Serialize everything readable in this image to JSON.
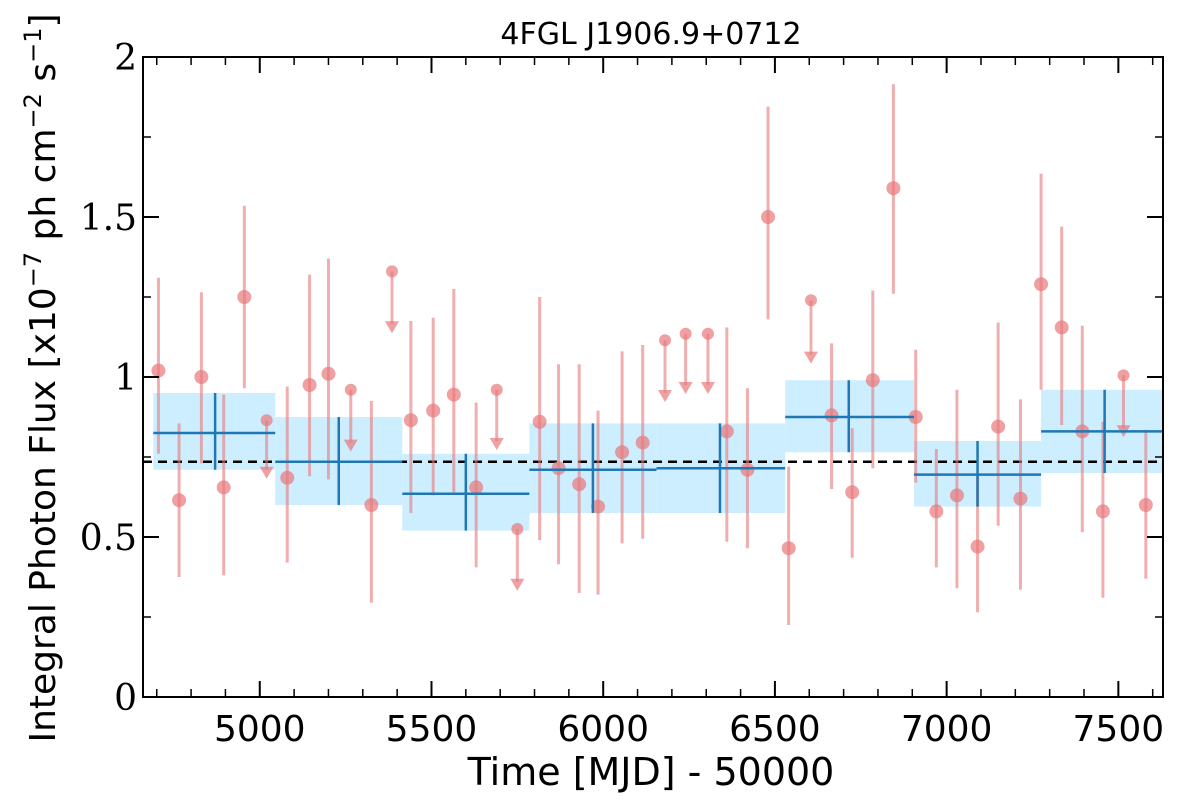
{
  "chart_data": {
    "type": "scatter",
    "title": "4FGL J1906.9+0712",
    "xlabel": "Time [MJD] - 50000",
    "ylabel": {
      "main": "Integral Photon Flux [x10",
      "exp1": "−7",
      "mid": " ph cm",
      "exp2": "−2",
      "mid2": " s",
      "exp3": "−1",
      "end": "]"
    },
    "xlim": [
      4660,
      7630
    ],
    "ylim": [
      0,
      2
    ],
    "xticks": [
      {
        "value": 5000,
        "label": "5000"
      },
      {
        "value": 5500,
        "label": "5500"
      },
      {
        "value": 6000,
        "label": "6000"
      },
      {
        "value": 6500,
        "label": "6500"
      },
      {
        "value": 7000,
        "label": "7000"
      },
      {
        "value": 7500,
        "label": "7500"
      }
    ],
    "yticks": [
      {
        "value": 0,
        "label": "0"
      },
      {
        "value": 0.5,
        "label": "0.5"
      },
      {
        "value": 1,
        "label": "1"
      },
      {
        "value": 1.5,
        "label": "1.5"
      },
      {
        "value": 2,
        "label": "2"
      }
    ],
    "mean_flux": 0.735,
    "colors": {
      "points": "#e8787a",
      "bins": "#1f77b4",
      "band": "#cdeeff",
      "mean_line": "#000000"
    },
    "detections": [
      {
        "x": 4705,
        "y": 1.02,
        "lo": 0.76,
        "hi": 1.31
      },
      {
        "x": 4765,
        "y": 0.615,
        "lo": 0.375,
        "hi": 0.855
      },
      {
        "x": 4830,
        "y": 1.0,
        "lo": 0.73,
        "hi": 1.265
      },
      {
        "x": 4895,
        "y": 0.655,
        "lo": 0.38,
        "hi": 0.945
      },
      {
        "x": 4955,
        "y": 1.25,
        "lo": 0.965,
        "hi": 1.535
      },
      {
        "x": 5080,
        "y": 0.685,
        "lo": 0.42,
        "hi": 0.97
      },
      {
        "x": 5145,
        "y": 0.975,
        "lo": 0.69,
        "hi": 1.32
      },
      {
        "x": 5200,
        "y": 1.01,
        "lo": 0.68,
        "hi": 1.37
      },
      {
        "x": 5325,
        "y": 0.6,
        "lo": 0.295,
        "hi": 0.925
      },
      {
        "x": 5440,
        "y": 0.865,
        "lo": 0.575,
        "hi": 1.175
      },
      {
        "x": 5505,
        "y": 0.895,
        "lo": 0.63,
        "hi": 1.185
      },
      {
        "x": 5565,
        "y": 0.945,
        "lo": 0.64,
        "hi": 1.275
      },
      {
        "x": 5630,
        "y": 0.655,
        "lo": 0.405,
        "hi": 0.92
      },
      {
        "x": 5815,
        "y": 0.86,
        "lo": 0.49,
        "hi": 1.25
      },
      {
        "x": 5870,
        "y": 0.715,
        "lo": 0.415,
        "hi": 1.04
      },
      {
        "x": 5930,
        "y": 0.665,
        "lo": 0.325,
        "hi": 1.04
      },
      {
        "x": 5985,
        "y": 0.595,
        "lo": 0.32,
        "hi": 0.895
      },
      {
        "x": 6055,
        "y": 0.765,
        "lo": 0.48,
        "hi": 1.08
      },
      {
        "x": 6115,
        "y": 0.795,
        "lo": 0.495,
        "hi": 1.1
      },
      {
        "x": 6360,
        "y": 0.83,
        "lo": 0.485,
        "hi": 1.155
      },
      {
        "x": 6420,
        "y": 0.71,
        "lo": 0.465,
        "hi": 0.965
      },
      {
        "x": 6480,
        "y": 1.5,
        "lo": 1.18,
        "hi": 1.845
      },
      {
        "x": 6540,
        "y": 0.465,
        "lo": 0.225,
        "hi": 0.72
      },
      {
        "x": 6665,
        "y": 0.88,
        "lo": 0.65,
        "hi": 1.105
      },
      {
        "x": 6725,
        "y": 0.64,
        "lo": 0.435,
        "hi": 0.84
      },
      {
        "x": 6785,
        "y": 0.99,
        "lo": 0.715,
        "hi": 1.27
      },
      {
        "x": 6845,
        "y": 1.59,
        "lo": 1.26,
        "hi": 1.915
      },
      {
        "x": 6910,
        "y": 0.875,
        "lo": 0.67,
        "hi": 1.085
      },
      {
        "x": 6970,
        "y": 0.58,
        "lo": 0.405,
        "hi": 0.775
      },
      {
        "x": 7030,
        "y": 0.63,
        "lo": 0.34,
        "hi": 0.96
      },
      {
        "x": 7090,
        "y": 0.47,
        "lo": 0.265,
        "hi": 0.69
      },
      {
        "x": 7150,
        "y": 0.845,
        "lo": 0.535,
        "hi": 1.17
      },
      {
        "x": 7215,
        "y": 0.62,
        "lo": 0.335,
        "hi": 0.93
      },
      {
        "x": 7275,
        "y": 1.29,
        "lo": 0.96,
        "hi": 1.635
      },
      {
        "x": 7335,
        "y": 1.155,
        "lo": 0.85,
        "hi": 1.47
      },
      {
        "x": 7395,
        "y": 0.83,
        "lo": 0.515,
        "hi": 1.16
      },
      {
        "x": 7455,
        "y": 0.58,
        "lo": 0.31,
        "hi": 0.86
      },
      {
        "x": 7580,
        "y": 0.6,
        "lo": 0.37,
        "hi": 0.835
      }
    ],
    "upper_limits": [
      {
        "x": 5020,
        "y": 0.865,
        "tip": 0.685
      },
      {
        "x": 5265,
        "y": 0.96,
        "tip": 0.77
      },
      {
        "x": 5385,
        "y": 1.33,
        "tip": 1.14
      },
      {
        "x": 5690,
        "y": 0.96,
        "tip": 0.775
      },
      {
        "x": 5750,
        "y": 0.525,
        "tip": 0.335
      },
      {
        "x": 6180,
        "y": 1.115,
        "tip": 0.925
      },
      {
        "x": 6240,
        "y": 1.135,
        "tip": 0.95
      },
      {
        "x": 6305,
        "y": 1.135,
        "tip": 0.95
      },
      {
        "x": 6605,
        "y": 1.24,
        "tip": 1.045
      },
      {
        "x": 7515,
        "y": 1.005,
        "tip": 0.815
      }
    ],
    "bins": [
      {
        "x0": 4690,
        "x1": 5045,
        "xc": 4870,
        "y": 0.825,
        "lo": 0.71,
        "hi": 0.95
      },
      {
        "x0": 5045,
        "x1": 5415,
        "xc": 5230,
        "y": 0.735,
        "lo": 0.6,
        "hi": 0.875
      },
      {
        "x0": 5415,
        "x1": 5785,
        "xc": 5600,
        "y": 0.635,
        "lo": 0.52,
        "hi": 0.76
      },
      {
        "x0": 5785,
        "x1": 6155,
        "xc": 5970,
        "y": 0.71,
        "lo": 0.575,
        "hi": 0.855
      },
      {
        "x0": 6155,
        "x1": 6530,
        "xc": 6340,
        "y": 0.715,
        "lo": 0.575,
        "hi": 0.855
      },
      {
        "x0": 6530,
        "x1": 6905,
        "xc": 6715,
        "y": 0.875,
        "lo": 0.765,
        "hi": 0.99
      },
      {
        "x0": 6905,
        "x1": 7275,
        "xc": 7090,
        "y": 0.695,
        "lo": 0.595,
        "hi": 0.8
      },
      {
        "x0": 7275,
        "x1": 7645,
        "xc": 7460,
        "y": 0.83,
        "lo": 0.7,
        "hi": 0.96
      }
    ]
  }
}
